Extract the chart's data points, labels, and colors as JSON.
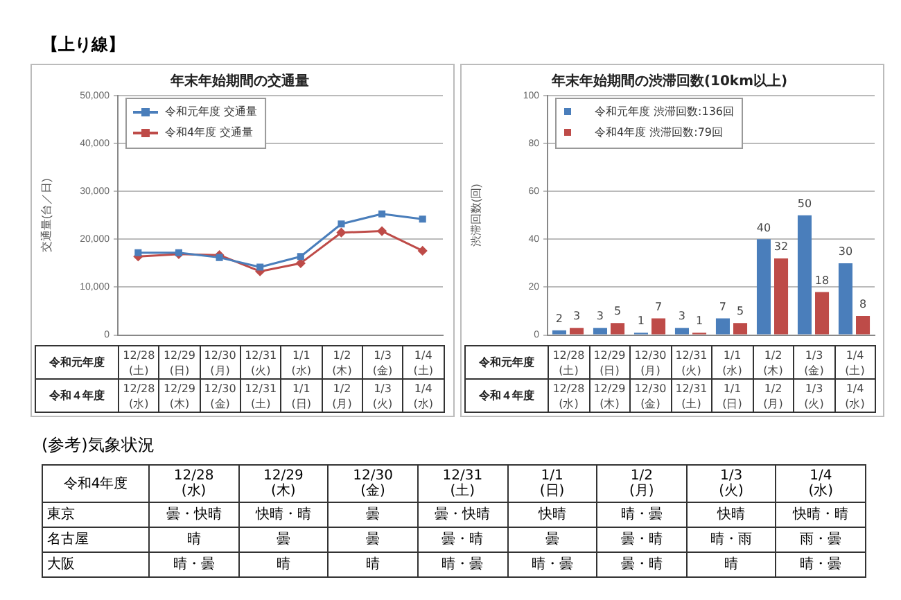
{
  "chart_data": [
    {
      "type": "line",
      "title": "年末年始期間の交通量",
      "ylabel": "交通量(台／日)",
      "categories": [
        "12/28\n(土)",
        "12/29\n(日)",
        "12/30\n(月)",
        "12/31\n(火)",
        "1/1\n(水)",
        "1/2\n(木)",
        "1/3\n(金)",
        "1/4\n(土)"
      ],
      "series": [
        {
          "name": "令和元年度 交通量",
          "color": "#4a7ebb",
          "marker": "square",
          "values": [
            17200,
            17200,
            16200,
            14200,
            16400,
            23200,
            25300,
            24200
          ]
        },
        {
          "name": "令和4年度 交通量",
          "color": "#be4b48",
          "marker": "diamond",
          "values": [
            16400,
            16900,
            16700,
            13300,
            15000,
            21400,
            21700,
            17600
          ]
        }
      ],
      "ylim": [
        0,
        50000
      ],
      "yticks": [
        0,
        {
          "value": 10000,
          "label": "10,000"
        },
        {
          "value": 20000,
          "label": "20,000"
        },
        {
          "value": 30000,
          "label": "30,000"
        },
        {
          "value": 40000,
          "label": "40,000"
        },
        {
          "value": 50000,
          "label": "50,000"
        }
      ],
      "grid": "y",
      "legend": "top left",
      "annotations": [
        "【上り線】",
        "令和元年度",
        "令和４年度",
        "12/28\n(水)",
        "12/29\n(木)",
        "12/30\n(金)",
        "12/31\n(土)",
        "1/1\n(日)",
        "1/2\n(月)",
        "1/3\n(火)",
        "1/4\n(水)"
      ]
    },
    {
      "type": "bar",
      "title": "年末年始期間の渋滞回数(10km以上)",
      "ylabel": "渋滞回数(回)",
      "categories": [
        "12/28\n(土)",
        "12/29\n(日)",
        "12/30\n(月)",
        "12/31\n(火)",
        "1/1\n(水)",
        "1/2\n(木)",
        "1/3\n(金)",
        "1/4\n(土)"
      ],
      "series": [
        {
          "name": "令和元年度 渋滞回数:136回",
          "color": "#4a7ebb",
          "values": [
            2,
            3,
            1,
            3,
            7,
            40,
            50,
            30
          ]
        },
        {
          "name": "令和4年度 渋滞回数:79回",
          "color": "#be4b48",
          "values": [
            3,
            5,
            7,
            1,
            5,
            32,
            18,
            8
          ]
        }
      ],
      "ylim": [
        0,
        100
      ],
      "yticks": [
        0,
        20,
        40,
        60,
        80,
        100
      ],
      "grid": "y",
      "legend": "top left",
      "data_labels": true,
      "annotations": [
        "令和元年度",
        "令和４年度",
        "12/28\n(水)",
        "12/29\n(木)",
        "12/30\n(金)",
        "12/31\n(土)",
        "1/1\n(日)",
        "1/2\n(月)",
        "1/3\n(火)",
        "1/4\n(水)"
      ]
    },
    {
      "type": "other",
      "title": "(参考)気象状況",
      "categories": [
        "12/28\n(水)",
        "12/29\n(木)",
        "12/30\n(金)",
        "12/31\n(土)",
        "1/1\n(日)",
        "1/2\n(月)",
        "1/3\n(火)",
        "1/4\n(水)"
      ],
      "y_categories": [
        "東京",
        "名古屋",
        "大阪"
      ],
      "cell_labels": [
        [
          "曇・快晴",
          "快晴・晴",
          "曇",
          "曇・快晴",
          "快晴",
          "晴・曇",
          "快晴",
          "快晴・晴"
        ],
        [
          "晴",
          "曇",
          "曇",
          "曇・晴",
          "曇",
          "曇・晴",
          "晴・雨",
          "雨・曇"
        ],
        [
          "晴・曇",
          "晴",
          "晴",
          "晴・曇",
          "晴・曇",
          "曇・晴",
          "晴",
          "晴・曇"
        ]
      ],
      "annotations": [
        "令和4年度"
      ]
    }
  ]
}
